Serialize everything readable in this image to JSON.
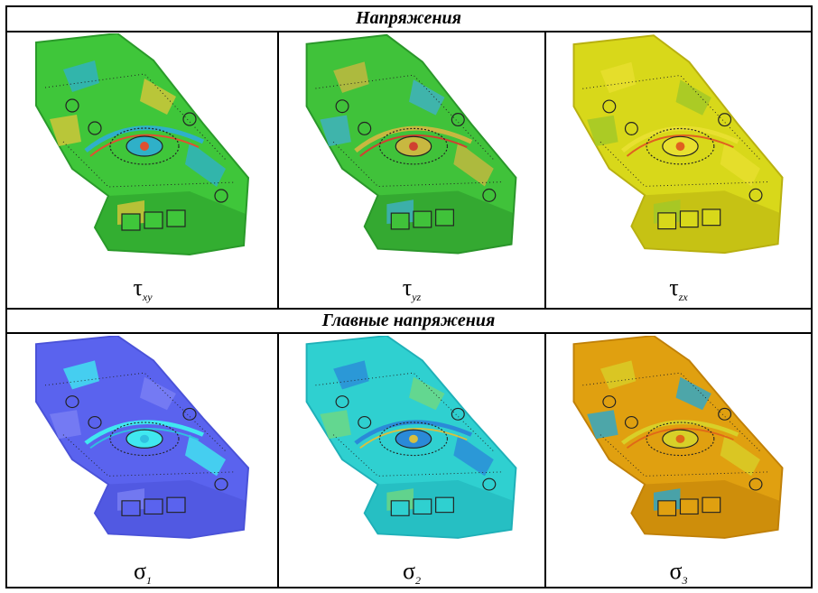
{
  "headers": {
    "stresses": "Напряжения",
    "principal": "Главные напряжения"
  },
  "cells": [
    {
      "symbol": "τ",
      "subscript": "xy",
      "palette": {
        "base": "#3fc63a",
        "accent1": "#2fb0c8",
        "accent2": "#d8c53a",
        "accent3": "#e05030",
        "dark": "#2a9a2a"
      }
    },
    {
      "symbol": "τ",
      "subscript": "yz",
      "palette": {
        "base": "#40c23a",
        "accent1": "#c8b840",
        "accent2": "#3fb0c8",
        "accent3": "#d04030",
        "dark": "#2a962a"
      }
    },
    {
      "symbol": "τ",
      "subscript": "zx",
      "palette": {
        "base": "#d8d81a",
        "accent1": "#e8e030",
        "accent2": "#a0c828",
        "accent3": "#e06020",
        "dark": "#b8b010"
      }
    },
    {
      "symbol": "σ",
      "subscript": "1",
      "palette": {
        "base": "#5a63ee",
        "accent1": "#40e8f0",
        "accent2": "#7a80f4",
        "accent3": "#30c0e0",
        "dark": "#4a52d8"
      }
    },
    {
      "symbol": "σ",
      "subscript": "2",
      "palette": {
        "base": "#2fd0d0",
        "accent1": "#2a8ad8",
        "accent2": "#70d880",
        "accent3": "#d8c040",
        "dark": "#1fb0b8"
      }
    },
    {
      "symbol": "σ",
      "subscript": "3",
      "palette": {
        "base": "#e0a010",
        "accent1": "#d8d028",
        "accent2": "#28a8d0",
        "accent3": "#e06818",
        "dark": "#c08008"
      }
    }
  ]
}
